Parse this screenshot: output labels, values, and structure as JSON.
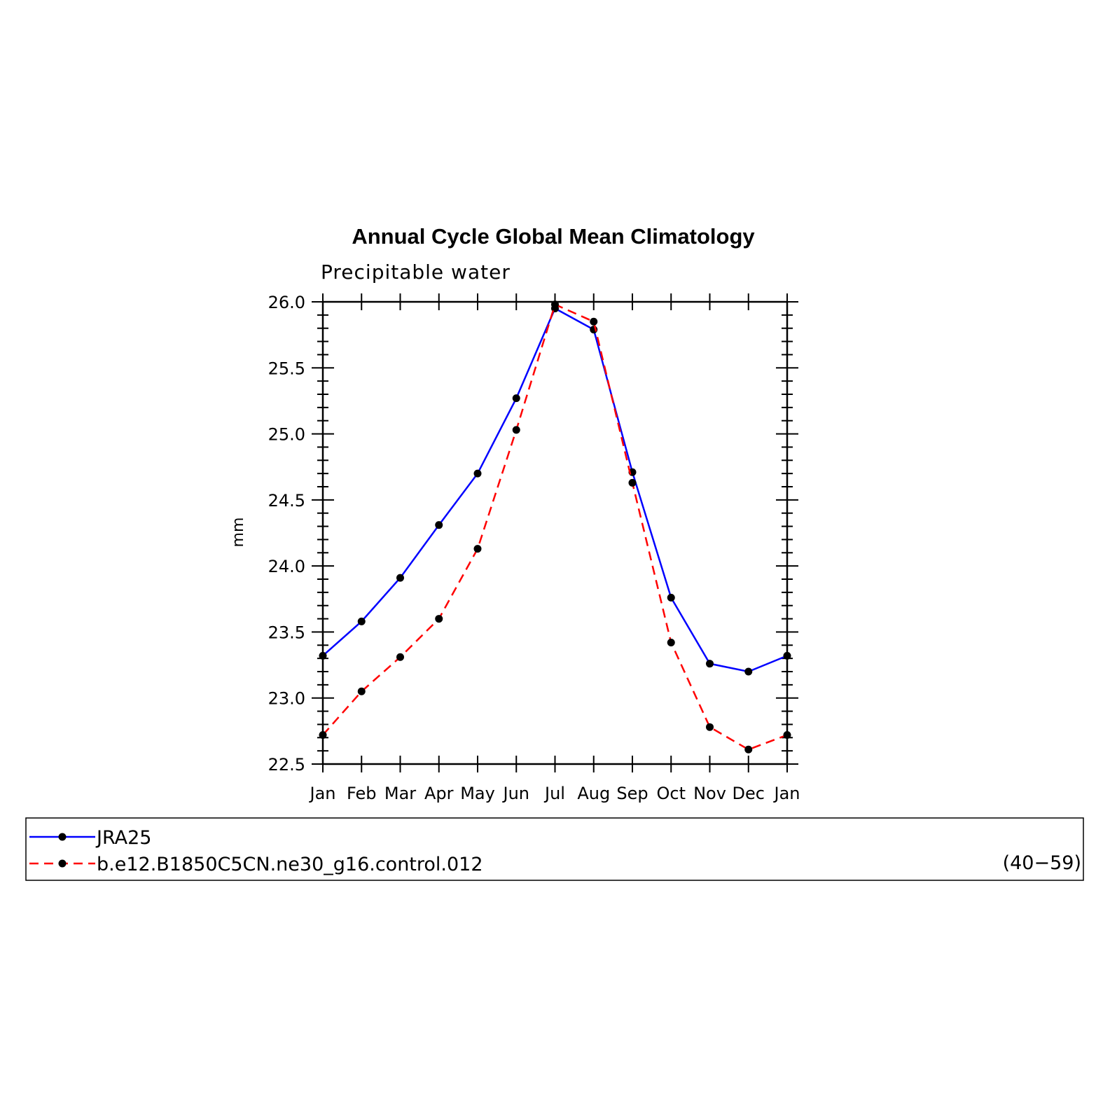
{
  "chart_data": {
    "type": "line",
    "title": "Annual Cycle Global Mean Climatology",
    "subtitle": "Precipitable water",
    "xlabel": "",
    "ylabel": "mm",
    "categories": [
      "Jan",
      "Feb",
      "Mar",
      "Apr",
      "May",
      "Jun",
      "Jul",
      "Aug",
      "Sep",
      "Oct",
      "Nov",
      "Dec",
      "Jan"
    ],
    "ylim": [
      22.5,
      26.0
    ],
    "yticks": [
      "22.5",
      "23.0",
      "23.5",
      "24.0",
      "24.5",
      "25.0",
      "25.5",
      "26.0"
    ],
    "series": [
      {
        "name": "JRA25",
        "color": "#0000ff",
        "dash": "solid",
        "values": [
          23.32,
          23.58,
          23.91,
          24.31,
          24.7,
          25.27,
          25.95,
          25.79,
          24.71,
          23.76,
          23.26,
          23.2,
          23.32
        ]
      },
      {
        "name": "b.e12.B1850C5CN.ne30_g16.control.012",
        "color": "#ff0000",
        "dash": "dashed",
        "values": [
          22.72,
          23.05,
          23.31,
          23.6,
          24.13,
          25.03,
          25.98,
          25.85,
          24.63,
          23.42,
          22.78,
          22.61,
          22.72
        ]
      }
    ],
    "legend": {
      "placement": "bottom",
      "years": "(40−59)"
    }
  }
}
